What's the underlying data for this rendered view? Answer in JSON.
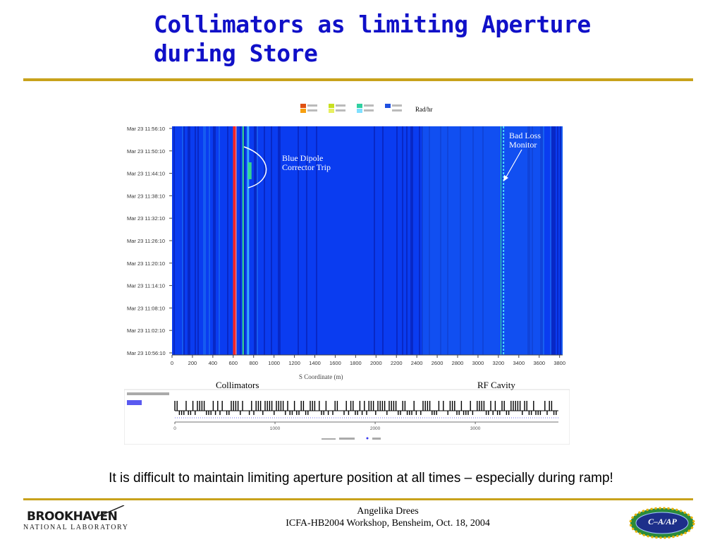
{
  "slide": {
    "title_line1": "Collimators as limiting Aperture",
    "title_line2": "during Store",
    "caption": "It is difficult to maintain limiting aperture position at all times – especially during ramp!",
    "footer_line1": "Angelika Drees",
    "footer_line2": "ICFA-HB2004 Workshop, Bensheim, Oct. 18, 2004",
    "logo_left_name": "BROOKHAVEN",
    "logo_left_sub": "NATIONAL LABORATORY",
    "logo_right_text": "C–A/AP"
  },
  "figure": {
    "legend_unit": "Rad/hr",
    "annotation_dipole": [
      "Blue Dipole",
      "Corrector Trip"
    ],
    "annotation_monitor": [
      "Bad Loss",
      "Monitor"
    ],
    "label_collimators": "Collimators",
    "label_rf": "RF Cavity",
    "colors": {
      "background": "#0a3cf0",
      "light_band": "#1a66f2",
      "dark_band": "#0822b8",
      "collimator": "#ff2020",
      "green": "#39e08a",
      "cyan": "#48d8ff"
    }
  },
  "chart_data": {
    "type": "heatmap",
    "x_ticks": [
      0,
      200,
      400,
      600,
      800,
      1000,
      1200,
      1400,
      1600,
      1800,
      2000,
      2200,
      2400,
      2600,
      2800,
      3000,
      3200,
      3400,
      3600,
      3800
    ],
    "x_range": [
      0,
      3830
    ],
    "y_ticks": [
      "Mar 23 11:56:10",
      "Mar 23 11:50:10",
      "Mar 23 11:44:10",
      "Mar 23 11:38:10",
      "Mar 23 11:32:10",
      "Mar 23 11:26:10",
      "Mar 23 11:20:10",
      "Mar 23 11:14:10",
      "Mar 23 11:08:10",
      "Mar 23 11:02:10",
      "Mar 23 10:56:10"
    ],
    "xlabel": "S Coordinate (m)",
    "lattice_ticks": [
      0,
      1000,
      2000,
      3000
    ]
  }
}
